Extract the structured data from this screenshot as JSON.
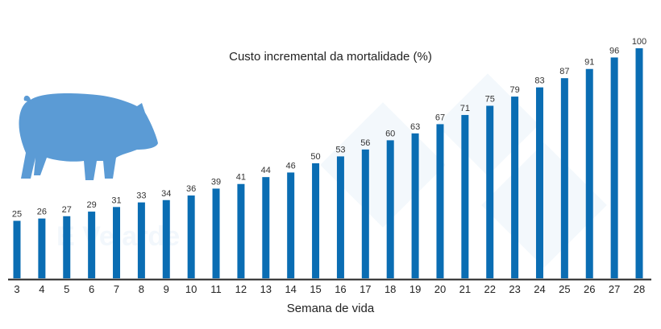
{
  "chart_data": {
    "type": "bar",
    "title": "Custo incremental da mortalidade (%)",
    "xlabel": "Semana de vida",
    "ylabel": "",
    "categories": [
      "3",
      "4",
      "5",
      "6",
      "7",
      "8",
      "9",
      "10",
      "11",
      "12",
      "13",
      "14",
      "15",
      "16",
      "17",
      "18",
      "19",
      "20",
      "21",
      "22",
      "23",
      "24",
      "25",
      "26",
      "27",
      "28"
    ],
    "values": [
      25,
      26,
      27,
      29,
      31,
      33,
      34,
      36,
      39,
      41,
      44,
      46,
      50,
      53,
      56,
      60,
      63,
      67,
      71,
      75,
      79,
      83,
      87,
      91,
      96,
      100
    ],
    "ylim": [
      0,
      100
    ],
    "grid": false,
    "legend": "none",
    "data_labels": true,
    "bar_color": "#0a6db3",
    "pig_color": "#5b9bd5",
    "watermark": "E Velarde"
  }
}
